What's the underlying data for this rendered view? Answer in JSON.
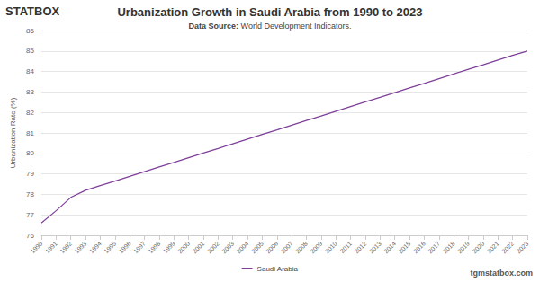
{
  "chart_data": {
    "type": "line",
    "title": "Urbanization Growth in Saudi Arabia from 1990 to 2023",
    "subtitle": "Data Source: World Development Indicators.",
    "logo": "STATBOX",
    "watermark": "tgmstatbox.com",
    "y_label": "Urbanization Rate (%)",
    "categories": [
      "1990",
      "1991",
      "1992",
      "1993",
      "1994",
      "1995",
      "1996",
      "1997",
      "1998",
      "1999",
      "2000",
      "2001",
      "2002",
      "2003",
      "2004",
      "2005",
      "2006",
      "2007",
      "2008",
      "2009",
      "2010",
      "2011",
      "2012",
      "2013",
      "2014",
      "2015",
      "2016",
      "2017",
      "2018",
      "2019",
      "2020",
      "2021",
      "2022",
      "2023"
    ],
    "series": [
      {
        "name": "Saudi Arabia",
        "color": "#7e3f98",
        "values": [
          76.6,
          77.2,
          77.85,
          78.2,
          78.43,
          78.65,
          78.88,
          79.11,
          79.34,
          79.56,
          79.79,
          80.02,
          80.24,
          80.47,
          80.7,
          80.93,
          81.15,
          81.38,
          81.61,
          81.83,
          82.06,
          82.29,
          82.52,
          82.74,
          82.97,
          83.2,
          83.42,
          83.65,
          83.88,
          84.11,
          84.33,
          84.56,
          84.79,
          85.0
        ]
      }
    ],
    "ylim": [
      76,
      86
    ],
    "yticks": [
      76,
      77,
      78,
      79,
      80,
      81,
      82,
      83,
      84,
      85,
      86
    ],
    "grid": true,
    "legend": "bottom"
  }
}
